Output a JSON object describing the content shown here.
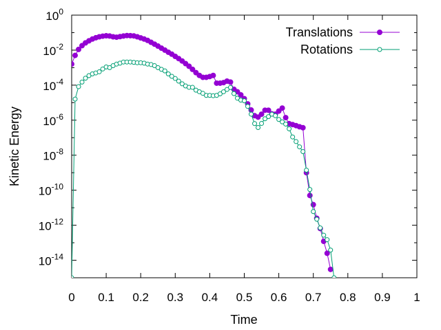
{
  "chart_data": {
    "type": "line",
    "title": "",
    "xlabel": "Time",
    "ylabel": "Kinetic Energy",
    "xlim": [
      0,
      1
    ],
    "ylim": [
      1e-15,
      1
    ],
    "yscale": "log",
    "grid": false,
    "legend_position": "top-right",
    "x_ticks": [
      {
        "value": 0,
        "label": "0"
      },
      {
        "value": 0.1,
        "label": "0.1"
      },
      {
        "value": 0.2,
        "label": "0.2"
      },
      {
        "value": 0.3,
        "label": "0.3"
      },
      {
        "value": 0.4,
        "label": "0.4"
      },
      {
        "value": 0.5,
        "label": "0.5"
      },
      {
        "value": 0.6,
        "label": "0.6"
      },
      {
        "value": 0.7,
        "label": "0.7"
      },
      {
        "value": 0.8,
        "label": "0.8"
      },
      {
        "value": 0.9,
        "label": "0.9"
      },
      {
        "value": 1,
        "label": "1"
      }
    ],
    "y_ticks": [
      {
        "exp": 0,
        "base": "10",
        "sup": "0"
      },
      {
        "exp": -2,
        "base": "10",
        "sup": "-2"
      },
      {
        "exp": -4,
        "base": "10",
        "sup": "-4"
      },
      {
        "exp": -6,
        "base": "10",
        "sup": "-6"
      },
      {
        "exp": -8,
        "base": "10",
        "sup": "-8"
      },
      {
        "exp": -10,
        "base": "10",
        "sup": "-10"
      },
      {
        "exp": -12,
        "base": "10",
        "sup": "-12"
      },
      {
        "exp": -14,
        "base": "10",
        "sup": "-14"
      }
    ],
    "series": [
      {
        "name": "Translations",
        "color": "#9400d3",
        "marker": "filled-circle",
        "points": [
          [
            0.0,
            0.0016
          ],
          [
            0.01,
            0.005
          ],
          [
            0.02,
            0.011
          ],
          [
            0.03,
            0.018
          ],
          [
            0.04,
            0.026
          ],
          [
            0.05,
            0.034
          ],
          [
            0.06,
            0.043
          ],
          [
            0.07,
            0.051
          ],
          [
            0.08,
            0.058
          ],
          [
            0.09,
            0.063
          ],
          [
            0.1,
            0.066
          ],
          [
            0.11,
            0.064
          ],
          [
            0.12,
            0.058
          ],
          [
            0.13,
            0.055
          ],
          [
            0.14,
            0.059
          ],
          [
            0.15,
            0.064
          ],
          [
            0.16,
            0.068
          ],
          [
            0.17,
            0.067
          ],
          [
            0.18,
            0.065
          ],
          [
            0.19,
            0.058
          ],
          [
            0.2,
            0.05
          ],
          [
            0.21,
            0.043
          ],
          [
            0.22,
            0.036
          ],
          [
            0.23,
            0.028
          ],
          [
            0.24,
            0.022
          ],
          [
            0.25,
            0.017
          ],
          [
            0.26,
            0.013
          ],
          [
            0.27,
            0.01
          ],
          [
            0.28,
            0.0076
          ],
          [
            0.29,
            0.0059
          ],
          [
            0.3,
            0.0044
          ],
          [
            0.31,
            0.0033
          ],
          [
            0.32,
            0.0024
          ],
          [
            0.33,
            0.0017
          ],
          [
            0.34,
            0.0012
          ],
          [
            0.35,
            0.0008
          ],
          [
            0.36,
            0.00052
          ],
          [
            0.37,
            0.00036
          ],
          [
            0.38,
            0.00028
          ],
          [
            0.39,
            0.00028
          ],
          [
            0.4,
            0.00031
          ],
          [
            0.41,
            0.00036
          ],
          [
            0.42,
            0.00013
          ],
          [
            0.43,
            0.00013
          ],
          [
            0.44,
            0.00014
          ],
          [
            0.45,
            0.00017
          ],
          [
            0.46,
            0.00015
          ],
          [
            0.47,
            5.8e-05
          ],
          [
            0.48,
            4.2e-05
          ],
          [
            0.49,
            2.8e-05
          ],
          [
            0.5,
            1.7e-05
          ],
          [
            0.51,
            8.5e-06
          ],
          [
            0.52,
            3.8e-06
          ],
          [
            0.53,
            1.8e-06
          ],
          [
            0.54,
            1.5e-06
          ],
          [
            0.55,
            2.2e-06
          ],
          [
            0.56,
            3.7e-06
          ],
          [
            0.57,
            3.7e-06
          ],
          [
            0.58,
            2.3e-06
          ],
          [
            0.59,
            2.2e-06
          ],
          [
            0.6,
            3.3e-06
          ],
          [
            0.61,
            4.9e-06
          ],
          [
            0.62,
            1.4e-06
          ],
          [
            0.63,
            6.3e-07
          ],
          [
            0.64,
            5.6e-07
          ],
          [
            0.65,
            4.9e-07
          ],
          [
            0.66,
            4.2e-07
          ],
          [
            0.67,
            3.7e-07
          ],
          [
            0.68,
            1e-09
          ],
          [
            0.69,
            5e-11
          ],
          [
            0.7,
            1.5e-11
          ],
          [
            0.71,
            2.5e-12
          ],
          [
            0.72,
            6.5e-13
          ],
          [
            0.73,
            1.2e-13
          ],
          [
            0.74,
            2.5e-14
          ],
          [
            0.75,
            3e-15
          ]
        ]
      },
      {
        "name": "Rotations",
        "color": "#009e73",
        "marker": "open-circle",
        "points": [
          [
            0.0,
            1e-15
          ],
          [
            0.01,
            1.6e-05
          ],
          [
            0.02,
            8.2e-05
          ],
          [
            0.03,
            0.00015
          ],
          [
            0.04,
            0.00025
          ],
          [
            0.05,
            0.00035
          ],
          [
            0.06,
            0.00044
          ],
          [
            0.07,
            0.0005
          ],
          [
            0.08,
            0.00058
          ],
          [
            0.09,
            0.00084
          ],
          [
            0.1,
            0.0011
          ],
          [
            0.11,
            0.001
          ],
          [
            0.12,
            0.0013
          ],
          [
            0.13,
            0.0016
          ],
          [
            0.14,
            0.0018
          ],
          [
            0.15,
            0.0021
          ],
          [
            0.16,
            0.0021
          ],
          [
            0.17,
            0.0021
          ],
          [
            0.18,
            0.002
          ],
          [
            0.19,
            0.0019
          ],
          [
            0.2,
            0.0019
          ],
          [
            0.21,
            0.0018
          ],
          [
            0.22,
            0.0016
          ],
          [
            0.23,
            0.0015
          ],
          [
            0.24,
            0.0013
          ],
          [
            0.25,
            0.001
          ],
          [
            0.26,
            0.0008
          ],
          [
            0.27,
            0.00065
          ],
          [
            0.28,
            0.00044
          ],
          [
            0.29,
            0.00032
          ],
          [
            0.3,
            0.00024
          ],
          [
            0.31,
            0.00017
          ],
          [
            0.32,
            0.00012
          ],
          [
            0.33,
            9e-05
          ],
          [
            0.34,
            7.5e-05
          ],
          [
            0.35,
            7.5e-05
          ],
          [
            0.36,
            5.2e-05
          ],
          [
            0.37,
            4.2e-05
          ],
          [
            0.38,
            3.4e-05
          ],
          [
            0.39,
            2.6e-05
          ],
          [
            0.4,
            2.6e-05
          ],
          [
            0.41,
            2.5e-05
          ],
          [
            0.42,
            2.6e-05
          ],
          [
            0.43,
            3.2e-05
          ],
          [
            0.44,
            4.2e-05
          ],
          [
            0.45,
            5.7e-05
          ],
          [
            0.46,
            7.4e-05
          ],
          [
            0.47,
            3.3e-05
          ],
          [
            0.48,
            1.8e-05
          ],
          [
            0.49,
            1.4e-05
          ],
          [
            0.5,
            1.28e-05
          ],
          [
            0.51,
            6.1e-06
          ],
          [
            0.52,
            2.2e-06
          ],
          [
            0.53,
            6.4e-07
          ],
          [
            0.54,
            3.8e-07
          ],
          [
            0.55,
            6.5e-07
          ],
          [
            0.56,
            1.2e-06
          ],
          [
            0.57,
            1.6e-06
          ],
          [
            0.58,
            2.2e-06
          ],
          [
            0.59,
            1.8e-06
          ],
          [
            0.6,
            1.1e-06
          ],
          [
            0.61,
            8e-07
          ],
          [
            0.62,
            6e-07
          ],
          [
            0.63,
            3.2e-07
          ],
          [
            0.64,
            1.1e-07
          ],
          [
            0.65,
            6e-08
          ],
          [
            0.66,
            3e-08
          ],
          [
            0.67,
            1.6e-08
          ],
          [
            0.68,
            1.4e-09
          ],
          [
            0.69,
            1.1e-10
          ],
          [
            0.7,
            6e-12
          ],
          [
            0.71,
            2.2e-12
          ],
          [
            0.72,
            7e-13
          ],
          [
            0.73,
            2.7e-13
          ],
          [
            0.74,
            1.5e-13
          ],
          [
            0.75,
            3.8e-14
          ],
          [
            0.76,
            1e-15
          ]
        ]
      }
    ]
  }
}
